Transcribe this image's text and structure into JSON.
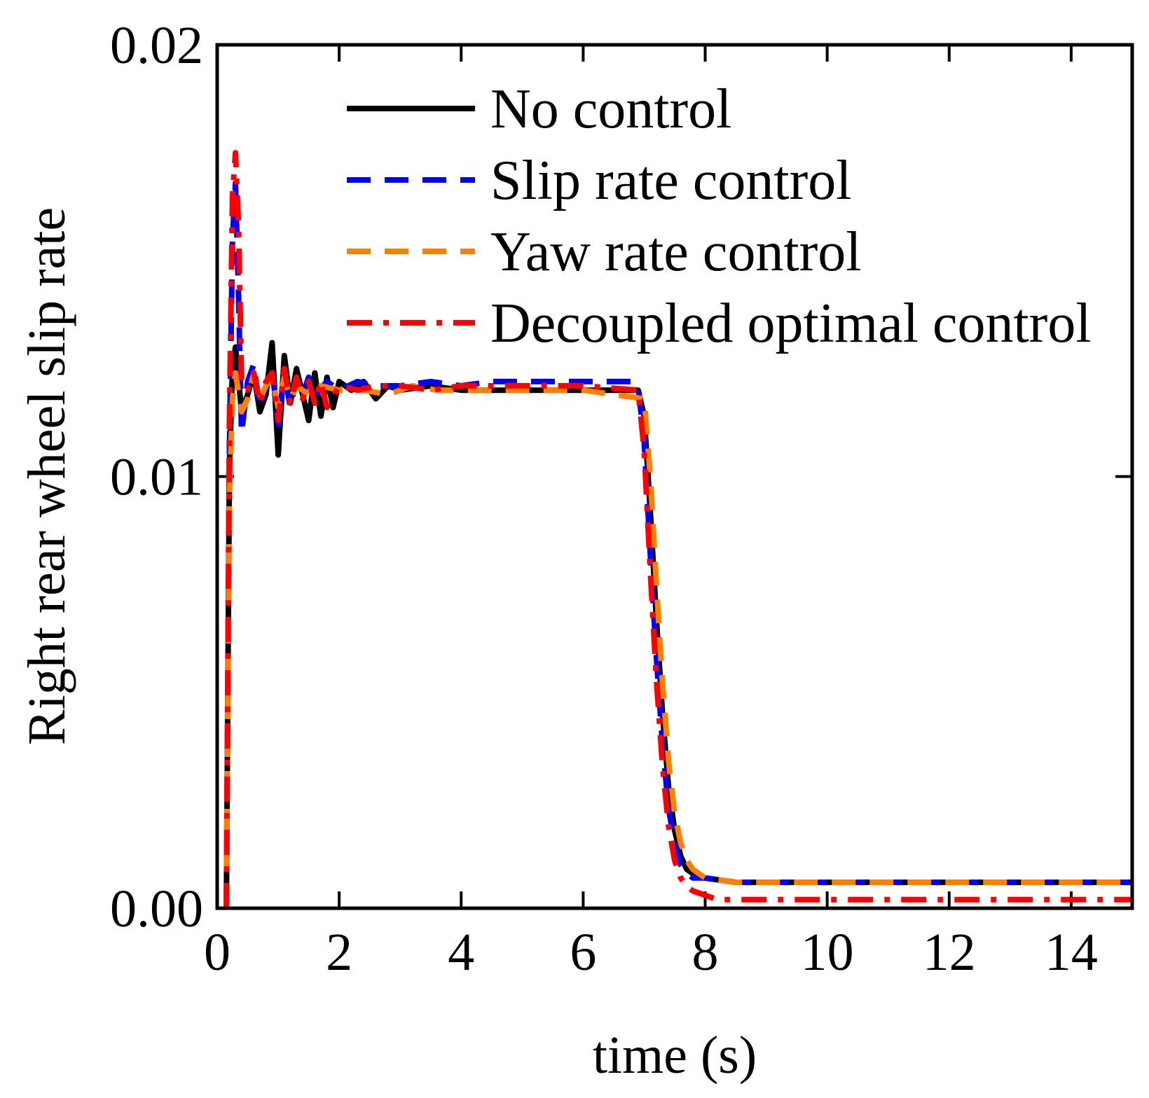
{
  "chart_data": {
    "type": "line",
    "title": "",
    "xlabel": "time (s)",
    "ylabel": "Right rear wheel slip rate",
    "xlim": [
      0,
      15
    ],
    "ylim": [
      0,
      0.02
    ],
    "xticks": [
      0,
      2,
      4,
      6,
      8,
      10,
      12,
      14
    ],
    "xtick_labels": [
      "0",
      "2",
      "4",
      "6",
      "8",
      "10",
      "12",
      "14"
    ],
    "yticks": [
      0,
      0.01,
      0.02
    ],
    "ytick_labels": [
      "0.00",
      "0.01",
      "0.02"
    ],
    "grid": false,
    "legend_position": "top-right",
    "series": [
      {
        "name": "No control",
        "color": "#000000",
        "dash": "solid",
        "x": [
          0.15,
          0.2,
          0.25,
          0.3,
          0.4,
          0.5,
          0.6,
          0.7,
          0.8,
          0.9,
          1.0,
          1.1,
          1.2,
          1.3,
          1.4,
          1.5,
          1.6,
          1.7,
          1.8,
          1.9,
          2.0,
          2.2,
          2.4,
          2.6,
          2.8,
          3.0,
          3.5,
          4.0,
          5.0,
          6.0,
          6.9,
          7.0,
          7.1,
          7.2,
          7.3,
          7.4,
          7.5,
          7.6,
          7.7,
          7.8,
          8.0,
          8.5,
          9.0,
          10.0,
          12.0,
          15.0
        ],
        "y": [
          0.0,
          0.0101,
          0.0125,
          0.013,
          0.0115,
          0.0119,
          0.0124,
          0.0115,
          0.0119,
          0.0131,
          0.0105,
          0.0128,
          0.0117,
          0.0125,
          0.0119,
          0.0113,
          0.0124,
          0.0114,
          0.0123,
          0.0116,
          0.0122,
          0.012,
          0.0122,
          0.0118,
          0.0121,
          0.012,
          0.0121,
          0.012,
          0.012,
          0.012,
          0.012,
          0.0114,
          0.0092,
          0.0067,
          0.0045,
          0.0028,
          0.0018,
          0.0012,
          0.0009,
          0.0008,
          0.0007,
          0.0006,
          0.0006,
          0.0006,
          0.0006,
          0.0006
        ]
      },
      {
        "name": "Slip rate control",
        "color": "#0000ff",
        "dash": "dashed",
        "x": [
          0.15,
          0.2,
          0.25,
          0.3,
          0.35,
          0.4,
          0.5,
          0.6,
          0.7,
          0.8,
          0.9,
          1.0,
          1.1,
          1.2,
          1.3,
          1.4,
          1.5,
          1.6,
          1.8,
          2.0,
          2.3,
          2.6,
          3.0,
          3.5,
          4.0,
          4.5,
          5.0,
          6.0,
          6.8,
          6.9,
          7.0,
          7.1,
          7.2,
          7.3,
          7.4,
          7.5,
          7.6,
          7.7,
          7.8,
          8.0,
          8.5,
          9.0,
          10.0,
          12.0,
          15.0
        ],
        "y": [
          0.0,
          0.0105,
          0.0155,
          0.0168,
          0.0142,
          0.011,
          0.0122,
          0.0126,
          0.0116,
          0.0121,
          0.0125,
          0.0112,
          0.0124,
          0.0116,
          0.0123,
          0.0119,
          0.0123,
          0.0119,
          0.0122,
          0.012,
          0.0122,
          0.0121,
          0.0121,
          0.0122,
          0.0121,
          0.0122,
          0.0122,
          0.0122,
          0.0122,
          0.0121,
          0.0108,
          0.0082,
          0.0058,
          0.0038,
          0.0023,
          0.0015,
          0.001,
          0.0008,
          0.0007,
          0.0007,
          0.0006,
          0.0006,
          0.0006,
          0.0006,
          0.0006
        ]
      },
      {
        "name": "Yaw  rate control",
        "color": "#ff8000",
        "dash": "dashed",
        "x": [
          0.15,
          0.2,
          0.25,
          0.3,
          0.4,
          0.5,
          0.6,
          0.7,
          0.8,
          0.9,
          1.0,
          1.1,
          1.2,
          1.3,
          1.5,
          1.7,
          2.0,
          2.4,
          2.8,
          3.2,
          3.6,
          4.0,
          5.0,
          6.0,
          7.0,
          7.1,
          7.2,
          7.3,
          7.4,
          7.5,
          7.6,
          7.7,
          7.8,
          7.9,
          8.0,
          8.5,
          9.0,
          10.0,
          12.0,
          15.0
        ],
        "y": [
          0.0,
          0.0095,
          0.0118,
          0.0124,
          0.0115,
          0.0118,
          0.0124,
          0.0118,
          0.0121,
          0.0123,
          0.0116,
          0.0123,
          0.0118,
          0.0121,
          0.0119,
          0.0121,
          0.012,
          0.012,
          0.0119,
          0.0121,
          0.012,
          0.012,
          0.012,
          0.012,
          0.0118,
          0.01,
          0.0075,
          0.0052,
          0.0034,
          0.0022,
          0.0015,
          0.0011,
          0.0009,
          0.0008,
          0.0007,
          0.0006,
          0.0006,
          0.0006,
          0.0006,
          0.0006
        ]
      },
      {
        "name": "Decoupled optimal control",
        "color": "#ff0000",
        "dash": "dashdot",
        "x": [
          0.15,
          0.2,
          0.25,
          0.3,
          0.35,
          0.4,
          0.5,
          0.6,
          0.7,
          0.8,
          0.9,
          1.0,
          1.1,
          1.2,
          1.3,
          1.4,
          1.5,
          1.6,
          1.7,
          1.8,
          2.0,
          2.3,
          2.6,
          3.0,
          3.5,
          4.0,
          5.0,
          6.0,
          6.9,
          7.0,
          7.1,
          7.2,
          7.3,
          7.4,
          7.5,
          7.6,
          7.7,
          7.8,
          8.0,
          8.2,
          8.5,
          9.0,
          10.0,
          12.0,
          15.0
        ],
        "y": [
          0.0,
          0.0112,
          0.0165,
          0.0175,
          0.0158,
          0.0122,
          0.012,
          0.0124,
          0.0117,
          0.0122,
          0.0124,
          0.0113,
          0.0125,
          0.0117,
          0.0123,
          0.0118,
          0.0122,
          0.0117,
          0.0122,
          0.0116,
          0.0121,
          0.012,
          0.0121,
          0.0121,
          0.012,
          0.0121,
          0.0121,
          0.0121,
          0.012,
          0.0106,
          0.0078,
          0.0053,
          0.0033,
          0.0019,
          0.0011,
          0.0007,
          0.0005,
          0.0004,
          0.0003,
          0.0002,
          0.0002,
          0.0002,
          0.0002,
          0.0002,
          0.0002
        ]
      }
    ]
  }
}
